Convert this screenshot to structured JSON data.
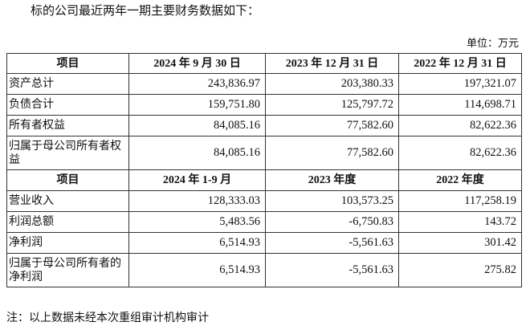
{
  "intro": "标的公司最近两年一期主要财务数据如下：",
  "unit": "单位：万元",
  "balance": {
    "headers": [
      "项目",
      "2024 年 9 月 30 日",
      "2023 年 12 月 31 日",
      "2022 年 12 月 31 日"
    ],
    "rows": [
      {
        "label": "资产总计",
        "values": [
          "243,836.97",
          "203,380.33",
          "197,321.07"
        ]
      },
      {
        "label": "负债合计",
        "values": [
          "159,751.80",
          "125,797.72",
          "114,698.71"
        ]
      },
      {
        "label": "所有者权益",
        "values": [
          "84,085.16",
          "77,582.60",
          "82,622.36"
        ]
      },
      {
        "label": "归属于母公司所有者权益",
        "values": [
          "84,085.16",
          "77,582.60",
          "82,622.36"
        ]
      }
    ]
  },
  "income": {
    "headers": [
      "项目",
      "2024 年 1-9 月",
      "2023 年度",
      "2022 年度"
    ],
    "rows": [
      {
        "label": "营业收入",
        "values": [
          "128,333.03",
          "103,573.25",
          "117,258.19"
        ]
      },
      {
        "label": "利润总额",
        "values": [
          "5,483.56",
          "-6,750.83",
          "143.72"
        ]
      },
      {
        "label": "净利润",
        "values": [
          "6,514.93",
          "-5,561.63",
          "301.42"
        ]
      },
      {
        "label": "归属于母公司所有者的净利润",
        "values": [
          "6,514.93",
          "-5,561.63",
          "275.82"
        ]
      }
    ]
  },
  "note": "注：以上数据未经本次重组审计机构审计"
}
